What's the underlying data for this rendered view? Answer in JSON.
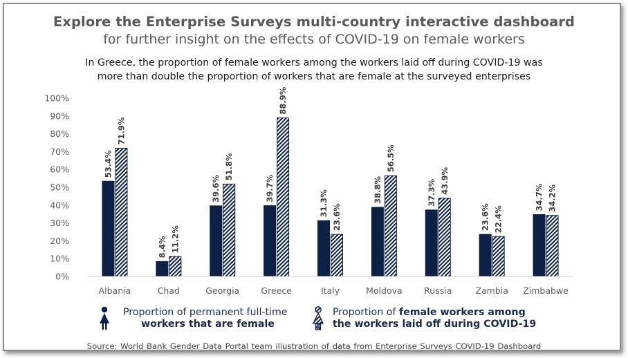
{
  "title": "Explore the Enterprise Surveys multi-country interactive dashboard",
  "subtitle": "for further insight on the effects of COVID-19 on female workers",
  "caption_line1": "In Greece, the proportion of female workers among the workers laid off during COVID-19 was",
  "caption_line2": "more than double the proportion of workers that are female at the surveyed enterprises",
  "legend": {
    "series1_line1": "Proportion of permanent full-time",
    "series1_line2_bold": "workers that are female",
    "series2_line1_plain": "Proportion of ",
    "series2_line1_bold": "female workers among",
    "series2_line2_bold": "the workers laid off during COVID-19"
  },
  "source": "Source: World Bank Gender Data Portal team illustration of data from Enterprise Surveys COVID-19 Dashboard",
  "colors": {
    "series1": "#0d2146",
    "series2_hatch": "#0d2146",
    "axis_text": "#595959",
    "title_text": "#595959"
  },
  "icons": {
    "series1": "female-figure-solid-icon",
    "series2": "female-figure-hatched-icon"
  },
  "chart_data": {
    "type": "bar",
    "title": "Explore the Enterprise Surveys multi-country interactive dashboard",
    "xlabel": "",
    "ylabel": "",
    "ylim": [
      0,
      100
    ],
    "y_ticks": [
      0,
      10,
      20,
      30,
      40,
      50,
      60,
      70,
      80,
      90,
      100
    ],
    "y_tick_labels": [
      "0%",
      "10%",
      "20%",
      "30%",
      "40%",
      "50%",
      "60%",
      "70%",
      "80%",
      "90%",
      "100%"
    ],
    "grid": false,
    "categories": [
      "Albania",
      "Chad",
      "Georgia",
      "Greece",
      "Italy",
      "Moldova",
      "Russia",
      "Zambia",
      "Zimbabwe"
    ],
    "series": [
      {
        "name": "Proportion of permanent full-time workers that are female",
        "values": [
          53.4,
          8.4,
          39.6,
          39.7,
          31.3,
          38.8,
          37.3,
          23.6,
          34.7
        ],
        "labels": [
          "53.4%",
          "8.4%",
          "39.6%",
          "39.7%",
          "31.3%",
          "38.8%",
          "37.3%",
          "23.6%",
          "34.7%"
        ],
        "style": "solid"
      },
      {
        "name": "Proportion of female workers among the workers laid off during COVID-19",
        "values": [
          71.9,
          11.2,
          51.8,
          88.9,
          23.6,
          56.5,
          43.9,
          22.4,
          34.2
        ],
        "labels": [
          "71.9%",
          "11.2%",
          "51.8%",
          "88.9%",
          "23.6%",
          "56.5%",
          "43.9%",
          "22.4%",
          "34.2%"
        ],
        "style": "hatched"
      }
    ]
  }
}
